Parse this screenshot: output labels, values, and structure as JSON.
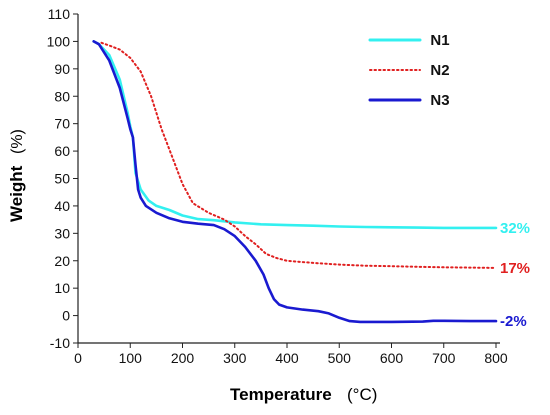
{
  "chart_data": {
    "type": "line",
    "xlabel": "Temperature",
    "xlabel_unit": "(°C)",
    "ylabel": "Weight",
    "ylabel_unit": "(%)",
    "xlim": [
      0,
      800
    ],
    "ylim": [
      -10,
      110
    ],
    "x_ticks": [
      0,
      100,
      200,
      300,
      400,
      500,
      600,
      700,
      800
    ],
    "y_ticks": [
      -10,
      0,
      10,
      20,
      30,
      40,
      50,
      60,
      70,
      80,
      90,
      100,
      110
    ],
    "grid": false,
    "legend_position": "top-right",
    "series": [
      {
        "name": "N1",
        "color": "#33f0f0",
        "style": "solid",
        "end_label": "32%",
        "x": [
          30,
          40,
          60,
          80,
          95,
          100,
          105,
          110,
          120,
          135,
          150,
          175,
          200,
          230,
          260,
          300,
          350,
          400,
          450,
          500,
          550,
          600,
          650,
          700,
          750,
          800
        ],
        "y": [
          100,
          99,
          95,
          86,
          74,
          69,
          65,
          52,
          46,
          42,
          40,
          38.5,
          36.5,
          35.2,
          34.8,
          34,
          33.3,
          33,
          32.8,
          32.5,
          32.3,
          32.2,
          32.1,
          32,
          32,
          32
        ]
      },
      {
        "name": "N2",
        "color": "#e02020",
        "style": "dotted",
        "end_label": "17%",
        "x": [
          45,
          60,
          80,
          100,
          120,
          140,
          160,
          180,
          200,
          220,
          250,
          280,
          300,
          320,
          340,
          360,
          380,
          400,
          450,
          500,
          550,
          600,
          650,
          700,
          750,
          800
        ],
        "y": [
          99.5,
          98.5,
          97,
          94,
          89,
          80,
          68,
          58,
          48,
          41,
          37.5,
          35,
          32.5,
          29,
          26,
          22.5,
          21,
          20,
          19.2,
          18.6,
          18.2,
          18,
          17.8,
          17.6,
          17.5,
          17.4
        ]
      },
      {
        "name": "N3",
        "color": "#1a1ad0",
        "style": "solid",
        "end_label": "-2%",
        "x": [
          30,
          40,
          60,
          80,
          95,
          100,
          105,
          110,
          115,
          120,
          130,
          150,
          175,
          200,
          230,
          260,
          280,
          300,
          320,
          340,
          355,
          365,
          375,
          385,
          400,
          430,
          460,
          480,
          500,
          520,
          540,
          600,
          660,
          680,
          700,
          750,
          800
        ],
        "y": [
          100,
          99,
          93,
          83,
          72,
          68,
          65,
          55,
          46,
          43,
          40,
          37.5,
          35.5,
          34.2,
          33.5,
          33,
          31.5,
          29,
          25,
          20,
          15,
          10,
          6,
          4,
          3,
          2.2,
          1.6,
          0.8,
          -0.8,
          -2,
          -2.3,
          -2.3,
          -2.2,
          -1.9,
          -1.9,
          -2,
          -2
        ]
      }
    ]
  }
}
